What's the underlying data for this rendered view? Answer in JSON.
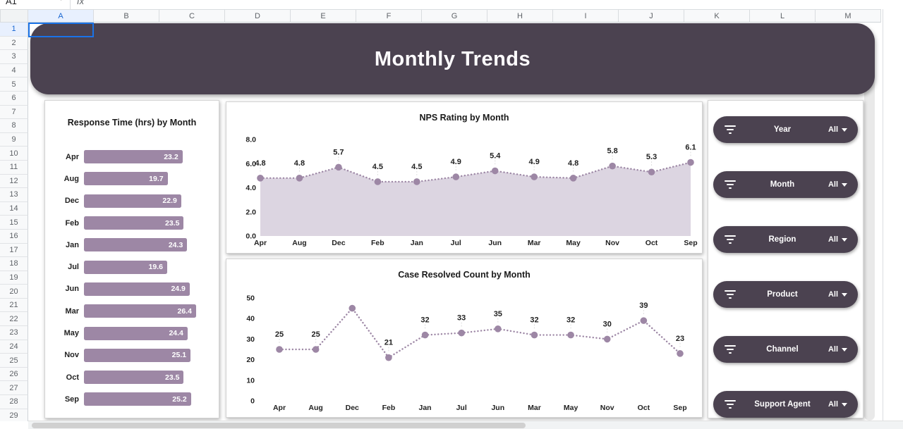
{
  "app": {
    "name_box": "A1",
    "fx_label": "fx"
  },
  "grid": {
    "columns": [
      "A",
      "B",
      "C",
      "D",
      "E",
      "F",
      "G",
      "H",
      "I",
      "J",
      "K",
      "L",
      "M"
    ],
    "selected_column": "A",
    "rows": [
      "1",
      "2",
      "3",
      "4",
      "5",
      "6",
      "7",
      "8",
      "9",
      "10",
      "11",
      "12",
      "13",
      "14",
      "15",
      "16",
      "17",
      "18",
      "19",
      "20",
      "21",
      "22",
      "23",
      "24",
      "25",
      "26",
      "27",
      "28",
      "29"
    ],
    "selected_row": "1",
    "selected_cell": "A1"
  },
  "dashboard": {
    "title": "Monthly Trends"
  },
  "colors": {
    "dark": "#4b4250",
    "accent": "#9d87a5",
    "area_fill": "#dcd5e1"
  },
  "slicers": {
    "items": [
      {
        "label": "Year",
        "value": "All"
      },
      {
        "label": "Month",
        "value": "All"
      },
      {
        "label": "Region",
        "value": "All"
      },
      {
        "label": "Product",
        "value": "All"
      },
      {
        "label": "Channel",
        "value": "All"
      },
      {
        "label": "Support Agent",
        "value": "All"
      }
    ]
  },
  "chart_data": [
    {
      "type": "bar",
      "orientation": "horizontal",
      "title": "Response Time (hrs) by Month",
      "categories": [
        "Apr",
        "Aug",
        "Dec",
        "Feb",
        "Jan",
        "Jul",
        "Jun",
        "Mar",
        "May",
        "Nov",
        "Oct",
        "Sep"
      ],
      "values": [
        23.2,
        19.7,
        22.9,
        23.5,
        24.3,
        19.6,
        24.9,
        26.4,
        24.4,
        25.1,
        23.5,
        25.2
      ],
      "labels": [
        "23.2",
        "19.7",
        "22.9",
        "23.5",
        "24.3",
        "19.6",
        "24.9",
        "26.4",
        "24.4",
        "25.1",
        "23.5",
        "25.2"
      ],
      "xlim": [
        0,
        27
      ],
      "grid": false,
      "legend": false
    },
    {
      "type": "area",
      "title": "NPS Rating by Month",
      "categories": [
        "Apr",
        "Aug",
        "Dec",
        "Feb",
        "Jan",
        "Jul",
        "Jun",
        "Mar",
        "May",
        "Nov",
        "Oct",
        "Sep"
      ],
      "values": [
        4.8,
        4.8,
        5.7,
        4.5,
        4.5,
        4.9,
        5.4,
        4.9,
        4.8,
        5.8,
        5.3,
        6.1
      ],
      "data_labels": [
        "4.8",
        "4.8",
        "5.7",
        "4.5",
        "4.5",
        "4.9",
        "5.4",
        "4.9",
        "4.8",
        "5.8",
        "5.3",
        "6.1"
      ],
      "ylim": [
        0,
        8
      ],
      "yticks": [
        "8.0",
        "6.0",
        "4.0",
        "2.0",
        "0.0"
      ],
      "line_style": "dotted",
      "markers": true,
      "grid": false,
      "legend": false
    },
    {
      "type": "line",
      "title": "Case Resolved Count by Month",
      "categories": [
        "Apr",
        "Aug",
        "Dec",
        "Feb",
        "Jan",
        "Jul",
        "Jun",
        "Mar",
        "May",
        "Nov",
        "Oct",
        "Sep"
      ],
      "values": [
        25,
        25,
        45,
        21,
        32,
        33,
        35,
        32,
        32,
        30,
        39,
        23
      ],
      "data_labels": [
        "25",
        "25",
        null,
        "21",
        "32",
        "33",
        "35",
        "32",
        "32",
        "30",
        "39",
        "23"
      ],
      "ylim": [
        0,
        50
      ],
      "yticks": [
        "50",
        "40",
        "30",
        "20",
        "10",
        "0"
      ],
      "line_style": "dotted",
      "markers": true,
      "grid": false,
      "legend": false
    }
  ]
}
